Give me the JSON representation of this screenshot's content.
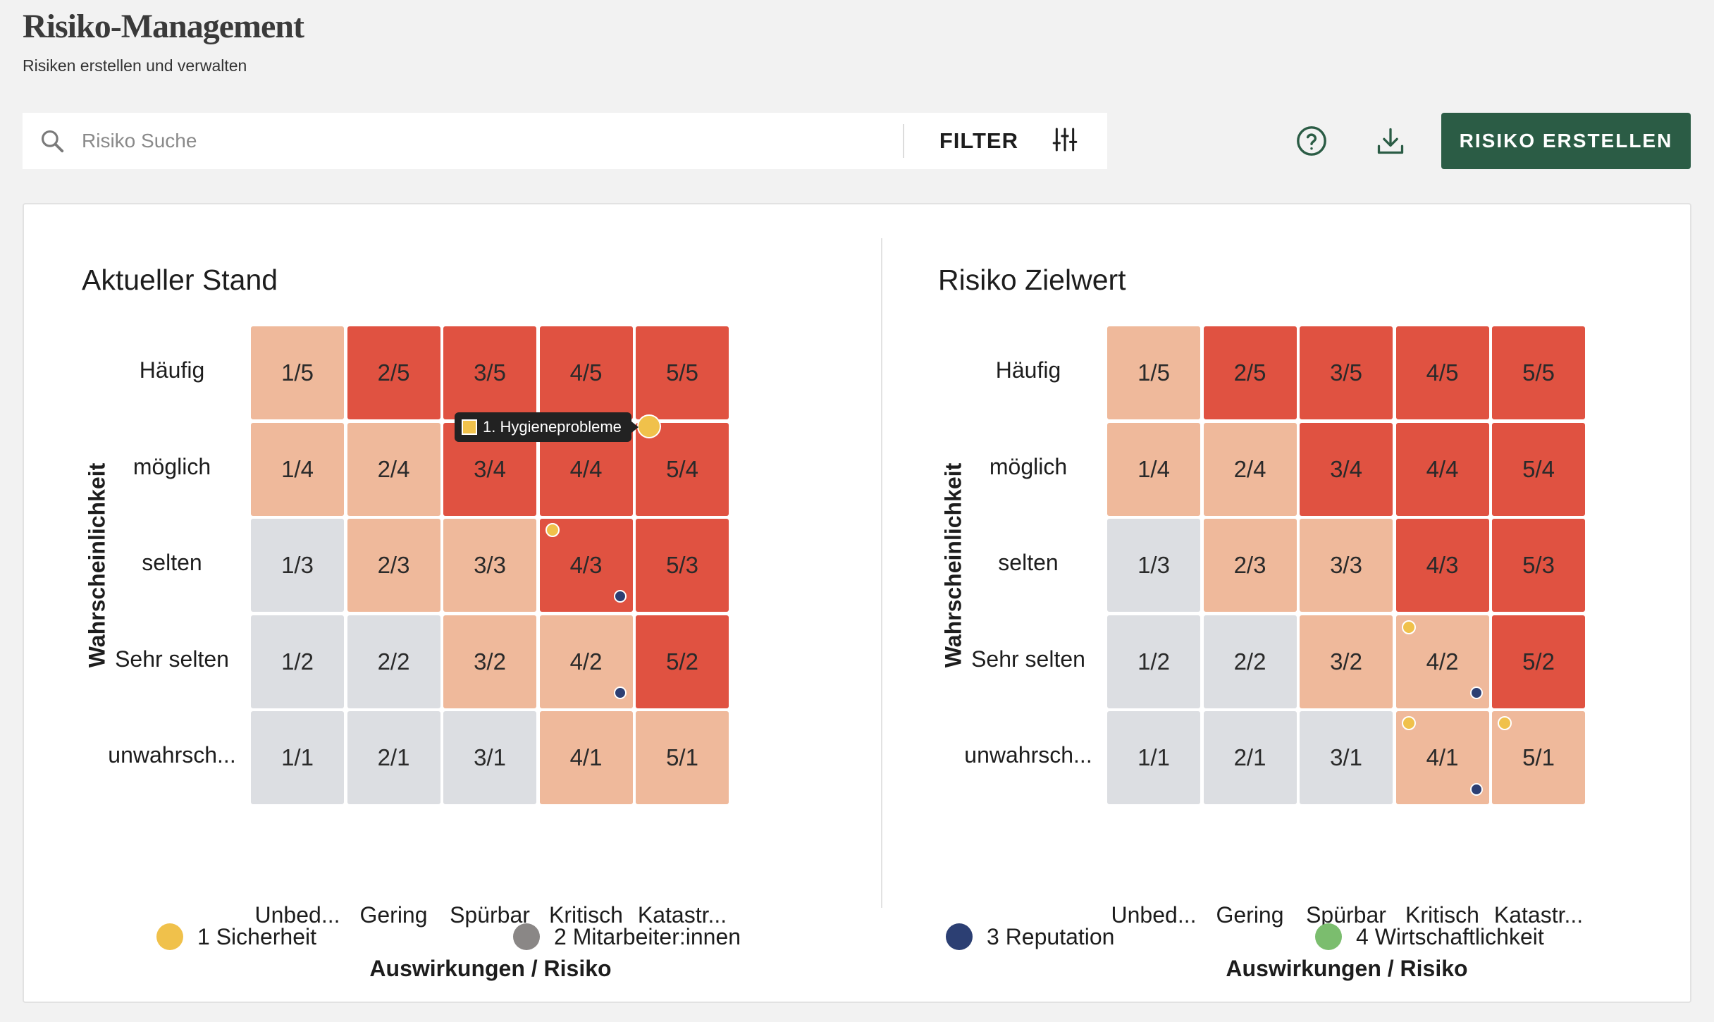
{
  "header": {
    "title": "Risiko-Management",
    "subtitle": "Risiken erstellen und verwalten"
  },
  "toolbar": {
    "search_placeholder": "Risiko Suche",
    "search_value": "",
    "filter_label": "FILTER",
    "help_icon": "help-circle-icon",
    "download_icon": "download-icon",
    "create_label": "RISIKO ERSTELLEN",
    "create_color": "#2b5c45"
  },
  "colors": {
    "gray": "#dcdee2",
    "peach": "#efb99b",
    "red": "#e05241"
  },
  "matrix": {
    "ylabel": "Wahrscheinlichkeit",
    "xlabel": "Auswirkungen / Risiko",
    "rows": [
      "Häufig",
      "möglich",
      "selten",
      "Sehr selten",
      "unwahrsch..."
    ],
    "columns": [
      "Unbed...",
      "Gering",
      "Spürbar",
      "Kritisch",
      "Katastr..."
    ]
  },
  "panels": [
    {
      "title": "Aktueller Stand",
      "cells": [
        [
          "1/5",
          "2/5",
          "3/5",
          "4/5",
          "5/5"
        ],
        [
          "1/4",
          "2/4",
          "3/4",
          "4/4",
          "5/4"
        ],
        [
          "1/3",
          "2/3",
          "3/3",
          "4/3",
          "5/3"
        ],
        [
          "1/2",
          "2/2",
          "3/2",
          "4/2",
          "5/2"
        ],
        [
          "1/1",
          "2/1",
          "3/1",
          "4/1",
          "5/1"
        ]
      ],
      "levels": [
        [
          "peach",
          "red",
          "red",
          "red",
          "red"
        ],
        [
          "peach",
          "peach",
          "red",
          "red",
          "red"
        ],
        [
          "gray",
          "peach",
          "peach",
          "red",
          "red"
        ],
        [
          "gray",
          "gray",
          "peach",
          "peach",
          "red"
        ],
        [
          "gray",
          "gray",
          "gray",
          "peach",
          "peach"
        ]
      ],
      "tooltip": {
        "label": "1. Hygieneprobleme"
      }
    },
    {
      "title": "Risiko Zielwert",
      "cells": [
        [
          "1/5",
          "2/5",
          "3/5",
          "4/5",
          "5/5"
        ],
        [
          "1/4",
          "2/4",
          "3/4",
          "4/4",
          "5/4"
        ],
        [
          "1/3",
          "2/3",
          "3/3",
          "4/3",
          "5/3"
        ],
        [
          "1/2",
          "2/2",
          "3/2",
          "4/2",
          "5/2"
        ],
        [
          "1/1",
          "2/1",
          "3/1",
          "4/1",
          "5/1"
        ]
      ],
      "levels": [
        [
          "peach",
          "red",
          "red",
          "red",
          "red"
        ],
        [
          "peach",
          "peach",
          "red",
          "red",
          "red"
        ],
        [
          "gray",
          "peach",
          "peach",
          "red",
          "red"
        ],
        [
          "gray",
          "gray",
          "peach",
          "peach",
          "red"
        ],
        [
          "gray",
          "gray",
          "gray",
          "peach",
          "peach"
        ]
      ]
    }
  ],
  "legend": [
    {
      "label": "1 Sicherheit",
      "color": "#f0c14b"
    },
    {
      "label": "2 Mitarbeiter:innen",
      "color": "#8a8786"
    },
    {
      "label": "3 Reputation",
      "color": "#2c3f73"
    },
    {
      "label": "4 Wirtschaftlichkeit",
      "color": "#7bbd6e"
    }
  ]
}
